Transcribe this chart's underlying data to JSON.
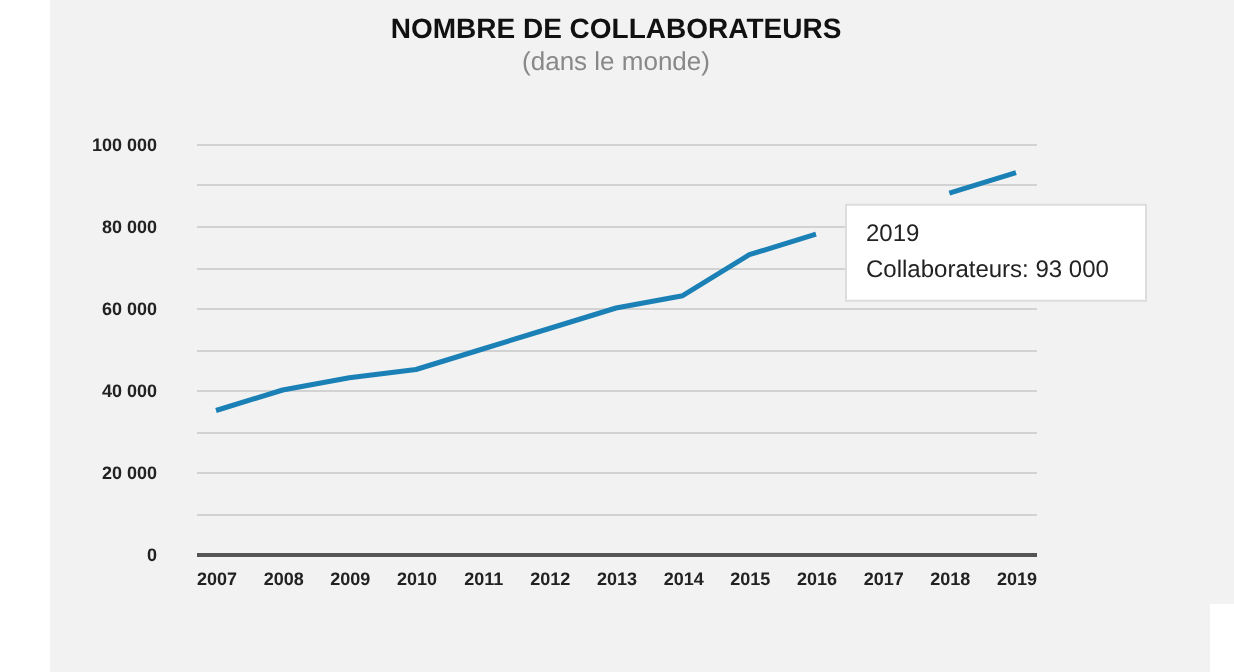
{
  "chart_data": {
    "type": "line",
    "title": "NOMBRE DE COLLABORATEURS",
    "subtitle": "(dans le monde)",
    "categories": [
      "2007",
      "2008",
      "2009",
      "2010",
      "2011",
      "2012",
      "2013",
      "2014",
      "2015",
      "2016",
      "2017",
      "2018",
      "2019"
    ],
    "series": [
      {
        "color": "#1a80b6",
        "values": [
          35000,
          40000,
          43000,
          45000,
          50000,
          55000,
          60000,
          63000,
          73000,
          78000,
          null,
          88000,
          93000
        ]
      }
    ],
    "ylim": [
      0,
      100000
    ],
    "yticks": [
      {
        "value": 0,
        "label": "0"
      },
      {
        "value": 10000,
        "label": null
      },
      {
        "value": 20000,
        "label": "20 000"
      },
      {
        "value": 30000,
        "label": null
      },
      {
        "value": 40000,
        "label": "40 000"
      },
      {
        "value": 50000,
        "label": null
      },
      {
        "value": 60000,
        "label": "60 000"
      },
      {
        "value": 70000,
        "label": null
      },
      {
        "value": 80000,
        "label": "80 000"
      },
      {
        "value": 90000,
        "label": null
      },
      {
        "value": 100000,
        "label": "100 000"
      }
    ],
    "grid": "y",
    "marker": "none",
    "line_style": "solid",
    "annotations": [
      {
        "text": "2019\nCollaborateurs: 93 000",
        "x": "2019",
        "y": 93000
      }
    ]
  }
}
